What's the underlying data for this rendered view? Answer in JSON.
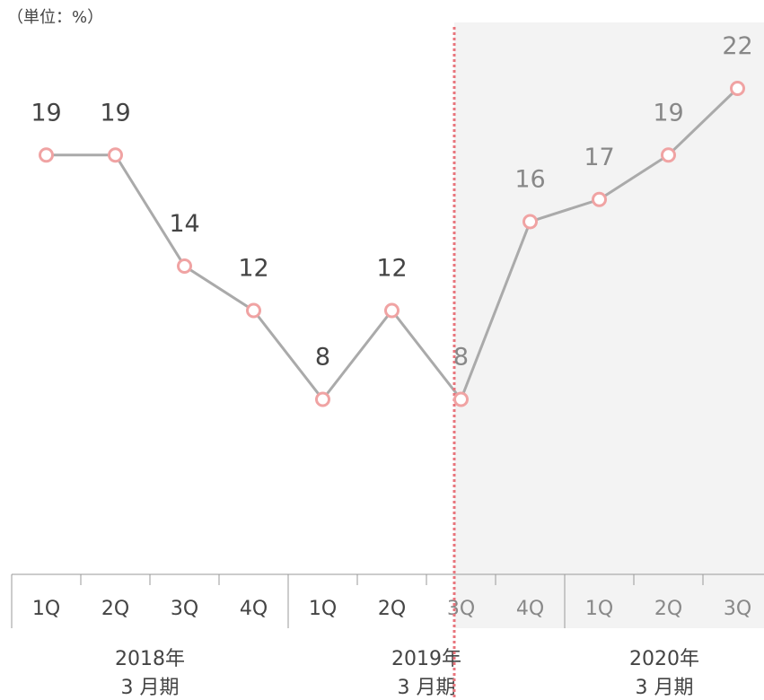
{
  "chart_data": {
    "type": "line",
    "unit_label": "（単位：%）",
    "groups": [
      {
        "label": [
          "2018年",
          "3 月期"
        ],
        "categories": [
          "1Q",
          "2Q",
          "3Q",
          "4Q"
        ]
      },
      {
        "label": [
          "2019年",
          "3 月期"
        ],
        "categories": [
          "1Q",
          "2Q",
          "3Q",
          "4Q"
        ]
      },
      {
        "label": [
          "2020年",
          "3 月期"
        ],
        "categories": [
          "1Q",
          "2Q",
          "3Q"
        ]
      }
    ],
    "values": [
      19,
      19,
      14,
      12,
      8,
      12,
      8,
      16,
      17,
      19,
      22
    ],
    "ylim": [
      0,
      24
    ],
    "color": "#aaaaaa",
    "marker_color": "#f0a3a3"
  }
}
